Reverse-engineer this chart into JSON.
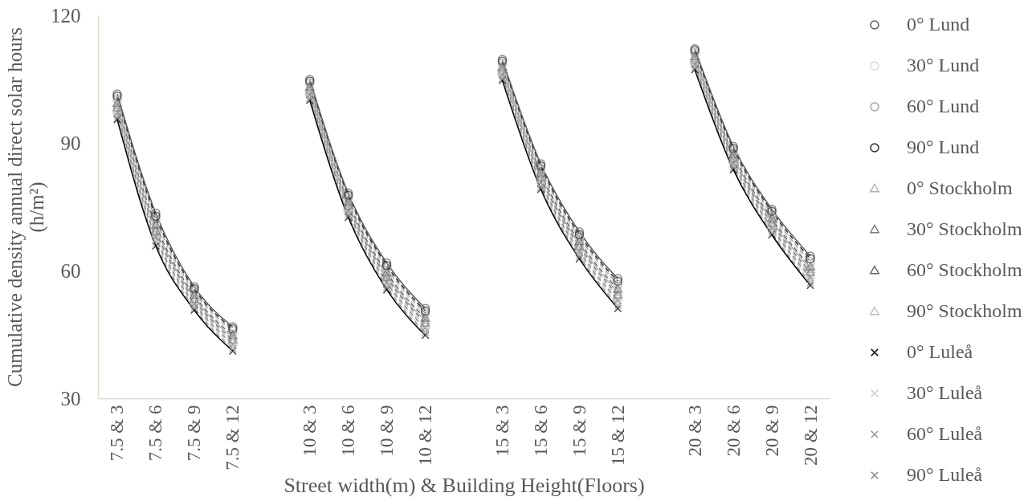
{
  "chart_data": {
    "type": "line",
    "xlabel": "Street width(m) & Building Height(Floors)",
    "ylabel": "Cumulative density annual direct solar hours (h/m²)",
    "categories": [
      "7.5 & 3",
      "7.5 & 6",
      "7.5 & 9",
      "7.5 & 12",
      null,
      "10 & 3",
      "10 & 6",
      "10 & 9",
      "10 & 12",
      null,
      "15 & 3",
      "15 & 6",
      "15 & 9",
      "15 & 12",
      null,
      "20 & 3",
      "20 & 6",
      "20 & 9",
      "20 & 12"
    ],
    "ylim": [
      30,
      120
    ],
    "yticks": [
      30,
      60,
      90,
      120
    ],
    "legend": "right",
    "series": [
      {
        "name": "0° Lund",
        "color": "#595959",
        "marker": "circle",
        "line_style": "solid",
        "values": [
          101.5,
          73.5,
          56.2,
          46.8,
          null,
          104.9,
          78.2,
          61.8,
          51.1,
          null,
          109.6,
          85.1,
          69.1,
          58.1,
          null,
          112.1,
          89.2,
          74.4,
          63.4
        ]
      },
      {
        "name": "30° Lund",
        "color": "#d9d9d9",
        "marker": "circle",
        "line_style": "dashed",
        "values": [
          99.9,
          71.4,
          54.7,
          45.2,
          null,
          103.6,
          76.6,
          60.1,
          49.4,
          null,
          108.3,
          83.5,
          67.4,
          56.2,
          null,
          110.8,
          87.7,
          72.8,
          61.5
        ]
      },
      {
        "name": "60° Lund",
        "color": "#a3a3a3",
        "marker": "circle",
        "line_style": "dashed",
        "values": [
          100.4,
          72.1,
          55.2,
          45.8,
          null,
          104.0,
          77.2,
          60.7,
          50.0,
          null,
          108.7,
          84.0,
          68.0,
          56.8,
          null,
          111.2,
          88.2,
          73.3,
          62.1
        ]
      },
      {
        "name": "90° Lund",
        "color": "#2b2b2b",
        "marker": "circle",
        "line_style": "dashed",
        "values": [
          101.0,
          72.8,
          55.7,
          46.3,
          null,
          104.5,
          77.7,
          61.2,
          50.5,
          null,
          109.2,
          84.6,
          68.5,
          57.5,
          null,
          111.7,
          88.7,
          73.9,
          62.8
        ]
      },
      {
        "name": "0° Stockholm",
        "color": "#b0b0b0",
        "marker": "triangle",
        "line_style": "solid",
        "values": [
          98.8,
          70.0,
          53.7,
          44.2,
          null,
          102.7,
          75.6,
          58.9,
          48.2,
          null,
          107.4,
          82.4,
          66.2,
          54.9,
          null,
          109.9,
          86.7,
          71.7,
          60.3
        ]
      },
      {
        "name": "30° Stockholm",
        "color": "#7a7a7a",
        "marker": "triangle",
        "line_style": "dashed",
        "values": [
          98.2,
          69.3,
          53.2,
          43.7,
          null,
          102.2,
          75.1,
          58.4,
          47.7,
          null,
          106.9,
          81.8,
          65.7,
          54.3,
          null,
          109.4,
          86.2,
          71.1,
          59.6
        ]
      },
      {
        "name": "60° Stockholm",
        "color": "#666666",
        "marker": "triangle",
        "line_style": "dashed",
        "values": [
          99.3,
          70.7,
          54.2,
          44.7,
          null,
          103.1,
          76.1,
          59.5,
          48.8,
          null,
          107.8,
          82.9,
          66.8,
          55.6,
          null,
          110.3,
          87.2,
          72.2,
          60.9
        ]
      },
      {
        "name": "90° Stockholm",
        "color": "#bfbfbf",
        "marker": "triangle",
        "line_style": "dashed",
        "values": [
          97.7,
          68.6,
          52.7,
          43.2,
          null,
          101.8,
          74.6,
          57.8,
          47.1,
          null,
          106.5,
          81.3,
          65.1,
          53.7,
          null,
          109.0,
          85.7,
          70.6,
          59.0
        ]
      },
      {
        "name": "0° Luleå",
        "color": "#000000",
        "marker": "cross",
        "line_style": "solid",
        "values": [
          95.5,
          65.8,
          50.7,
          41.1,
          null,
          100.0,
          72.5,
          55.5,
          44.8,
          null,
          104.7,
          79.1,
          62.8,
          51.1,
          null,
          107.2,
          83.7,
          68.4,
          56.5
        ]
      },
      {
        "name": "30° Luleå",
        "color": "#cccccc",
        "marker": "cross",
        "line_style": "dashed",
        "values": [
          96.6,
          67.2,
          51.7,
          42.1,
          null,
          100.9,
          73.5,
          56.6,
          45.9,
          null,
          105.6,
          80.2,
          63.9,
          52.4,
          null,
          108.1,
          84.7,
          69.5,
          57.8
        ]
      },
      {
        "name": "60° Luleå",
        "color": "#969696",
        "marker": "cross",
        "line_style": "dashed",
        "values": [
          96.0,
          66.5,
          51.2,
          41.6,
          null,
          100.4,
          73.0,
          56.1,
          45.4,
          null,
          105.1,
          79.6,
          63.4,
          51.7,
          null,
          107.6,
          84.2,
          68.9,
          57.1
        ]
      },
      {
        "name": "90° Luleå",
        "color": "#888888",
        "marker": "cross",
        "line_style": "dashed",
        "values": [
          97.1,
          67.9,
          52.2,
          42.7,
          null,
          101.3,
          74.1,
          57.2,
          46.5,
          null,
          106.0,
          80.7,
          64.5,
          53.0,
          null,
          108.5,
          85.2,
          70.0,
          58.4
        ]
      }
    ]
  }
}
